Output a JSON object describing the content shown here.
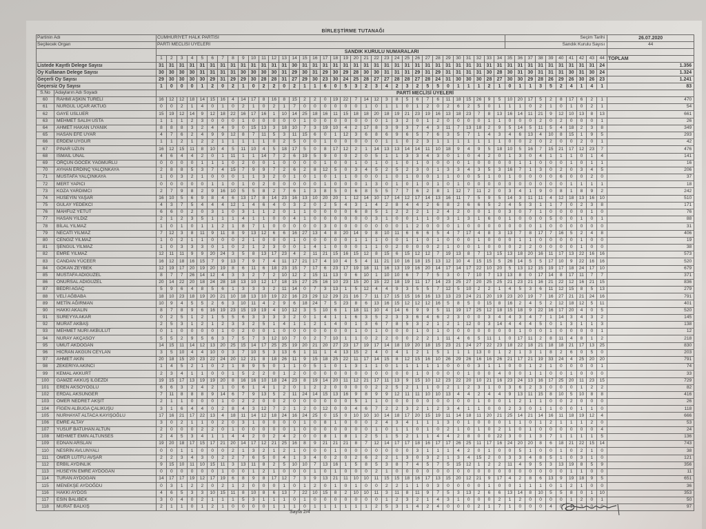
{
  "document": {
    "title": "BİRLEŞTİRME TUTANAĞI",
    "party_label": "Partinin Adı",
    "party_value": "CUMHURİYET HALK PARTİSİ",
    "organ_label": "Seçilecek Organ",
    "organ_value": "PARTİ MECLİSİ ÜYELERİ",
    "election_date_label": "Seçim Tarihi",
    "election_date": "26.07.2020",
    "ballot_count_label": "Sandık Kurulu Sayısı",
    "ballot_count": "44",
    "stations_header": "SANDIK KURULU NUMARALARI",
    "total_header": "TOPLAM",
    "sno_header": "S.No",
    "name_header": "Adayların Adı Soyadı",
    "section_header": "PARTİ MECLİSİ ÜYELERİ",
    "page_label": "Sayfa 2/4",
    "signature": "handwritten signature"
  },
  "summary_rows": [
    {
      "label": "Listede Kayıtlı Delege Sayısı",
      "values": "31 31 31 31 31 31 31 31 31 31 31 31 31 30 31 31 31 31 31 31 31 31 31 31 31 31 31 31 31 31 31 31 31 31 31 31 31 31 31 31 31 31 31 24",
      "total": "1.356"
    },
    {
      "label": "Oy Kullanan Delege Sayısı",
      "values": "30 30 30 30 31 31 31 31 30 30 30 30 31 29 30 31 29 30 29 28 30 30 31 31 31 29 31 29 31 31 31 31 30 28 30 31 30 31 31 31 30 31 30 24",
      "total": "1.324"
    },
    {
      "label": "Geçerli Oy Sayısı",
      "values": "29 30 30 30 30 29 31 29 29 30 28 28 31 27 29 30 23 30 24 25 28 27 27 28 28 27 28 24 31 30 30 30 28 27 30 30 29 28 26 29 26 30 26 23",
      "total": "1.241"
    },
    {
      "label": "Geçersiz Oy Sayısı",
      "values": "1 0 0 0 1 2 0 2 1 0 2 2 0 2 1 1 6 0 5 3 2 3 4 2 3 2 5 5 0 1 1 1 2 1 0 1 1 3 5 2 4 1 4 1",
      "total": "83"
    }
  ],
  "candidates": [
    {
      "sno": "60",
      "name": "RAHMİ AŞKIN TÜRELİ",
      "votes": "16 12 12 18 14 15 16 4 14 17 8 16 8 15 2 2 0 19 22 7 14 12 3 8 5 6 7 6 11 18 15 26 9 5 10 20 17 5 2 8 17 6 2 1",
      "total": "470"
    },
    {
      "sno": "61",
      "name": "NURGÜL UÇAR AKTUĞ",
      "votes": "0 0 2 1 4 0 1 0 2 1 0 2 1 7 0 0 0 0 0 0 1 0 1 1 0 1 2 0 2 6 2 5 0 1 1 1 0 2 1 0 1 0 2 1",
      "total": "54"
    },
    {
      "sno": "62",
      "name": "GAYE USLUER",
      "votes": "15 19 12 14 9 12 18 22 16 17 16 1 10 14 25 18 16 11 15 18 18 20 18 19 21 23 19 16 13 18 23 7 8 13 16 14 11 21 9 12 10 13 8 13",
      "total": "661"
    },
    {
      "sno": "63",
      "name": "MEHMET SALİH USTA",
      "votes": "1 1 1 2 3 0 0 0 1 0 0 0 0 0 1 0 0 0 0 0 0 0 1 3 2 0 1 2 0 0 0 0 1 1 0 0 0 2 0 2 0 0 0 1",
      "total": "26"
    },
    {
      "sno": "64",
      "name": "AHMET HAKAN UYANIK",
      "votes": "8 8 8 3 2 4 4 9 0 15 13 3 18 10 7 3 19 10 4 2 17 8 3 9 3 7 4 3 11 7 13 18 2 9 5 14 5 11 5 4 18 2 3 8",
      "total": "349"
    },
    {
      "sno": "65",
      "name": "HASAN EFE UYAR",
      "votes": "4 7 6 2 4 9 9 12 8 7 11 5 3 11 15 6 0 1 12 3 6 8 6 9 6 5 7 6 3 5 7 1 4 3 4 6 13 4 10 8 15 1 9 5",
      "total": "293"
    },
    {
      "sno": "66",
      "name": "ERDEM UYĞUR",
      "votes": "1 1 2 1 2 2 1 1 1 1 1 0 2 5 0 0 1 0 0 0 0 0 1 1 0 2 3 1 1 1 1 1 1 1 0 0 2 0 2 0 0 2 0 1",
      "total": "42"
    },
    {
      "sno": "67",
      "name": "PINAR UZUN",
      "votes": "16 12 15 11 8 10 4 5 11 10 4 5 18 17 5 0 8 17 12 2 1 14 13 13 14 14 11 10 18 9 4 9 5 18 10 5 16 7 15 21 17 12 23 7",
      "total": "476"
    },
    {
      "sno": "68",
      "name": "İSMAİL ÜNAL",
      "votes": "4 6 4 4 2 0 1 11 1 1 14 7 2 6 19 5 9 0 0 2 0 5 1 1 3 3 4 3 0 1 0 4 2 0 1 3 0 4 1 1 1 0 1 4",
      "total": "141"
    },
    {
      "sno": "69",
      "name": "ORÇUN GÖCEK YAĞMURLU",
      "votes": "0 0 0 0 1 1 1 0 2 0 0 1 0 0 0 0 1 0 0 1 0 1 0 1 0 1 0 0 0 0 1 0 0 0 0 1 1 0 0 0 1 0 1 1",
      "total": "16"
    },
    {
      "sno": "70",
      "name": "AYHAN ERDİNÇ YALÇINKAYA",
      "votes": "2 8 8 5 3 7 4 15 7 9 9 7 2 6 2 8 12 5 0 3 4 5 2 5 2 3 0 1 3 3 4 3 5 3 16 7 1 3 0 2 0 3 4 5",
      "total": "206"
    },
    {
      "sno": "71",
      "name": "MUSTAFA YALÇINKAYA",
      "votes": "1 0 3 2 1 0 0 0 1 1 3 2 0 1 0 1 0 1 1 0 0 0 1 0 1 0 0 1 1 0 0 5 1 0 1 0 0 0 0 6 0 0 2 0",
      "total": "37"
    },
    {
      "sno": "72",
      "name": "MERT YAPICI",
      "votes": "0 0 0 0 0 1 1 0 1 0 2 0 0 0 0 0 1 0 0 0 1 3 0 1 0 1 0 1 0 1 0 0 0 0 0 0 0 0 0 0 1 1 1 1",
      "total": "18"
    },
    {
      "sno": "73",
      "name": "KOZA YARDIMCI",
      "votes": "2 7 9 8 2 9 16 10 5 5 8 2 7 6 1 3 8 5 0 6 8 5 5 7 7 6 2 8 1 12 7 11 2 0 3 4 1 9 0 8 1 8 9 2",
      "total": "242"
    },
    {
      "sno": "74",
      "name": "HÜSEYİN YAŞAR",
      "votes": "16 10 5 6 9 8 4 6 13 17 8 14 23 16 13 10 20 20 1 12 14 10 17 14 12 17 14 13 16 11 7 5 9 5 14 3 11 11 4 12 18 13 16 10",
      "total": "510"
    },
    {
      "sno": "75",
      "name": "GÜLAY YEDEKCİ",
      "votes": "4 3 7 5 4 4 4 12 1 4 6 4 0 3 2 0 2 5 4 3 1 4 2 8 4 4 2 6 8 2 6 6 5 2 4 5 3 1 1 7 0 2 3 8",
      "total": "171"
    },
    {
      "sno": "76",
      "name": "MAHFUZ YETUT",
      "votes": "6 6 0 2 0 3 1 0 3 1 1 2 0 1 1 0 0 0 0 6 8 5 1 2 2 2 1 2 4 2 0 0 1 0 3 0 7 1 0 0 0 0 1 0",
      "total": "76"
    },
    {
      "sno": "77",
      "name": "HASAN YILDIZ",
      "votes": "2 1 2 3 5 1 1 1 4 1 1 0 0 4 1 0 0 0 0 0 0 3 1 0 0 1 1 0 3 1 3 1 6 0 1 0 0 0 5 0 0 1 0 1",
      "total": "88"
    },
    {
      "sno": "78",
      "name": "BİLAL YILMAZ",
      "votes": "1 0 1 0 1 1 2 1 8 7 1 0 0 0 0 0 3 0 0 0 0 0 0 0 1 2 0 0 0 1 0 0 0 0 0 0 0 1 0 0 0 0 0 0",
      "total": "31"
    },
    {
      "sno": "79",
      "name": "NECATİ YILMAZ",
      "votes": "7 12 3 8 11 9 11 8 9 13 12 6 6 16 27 13 4 8 20 14 9 8 10 11 6 6 6 5 4 7 17 4 8 3 13 7 8 17 7 16 5 2 4 8",
      "total": "406"
    },
    {
      "sno": "80",
      "name": "CENGİZ YILMAZ",
      "votes": "1 0 2 1 1 0 0 0 2 1 0 0 0 1 0 0 0 0 0 1 1 1 0 0 1 1 0 1 0 0 0 1 0 0 0 1 1 0 0 0 0 1 0 0",
      "total": "19"
    },
    {
      "sno": "81",
      "name": "ŞENGÜL YILMAZ",
      "votes": "1 0 3 3 3 0 1 0 2 1 2 3 0 0 1 4 1 0 0 0 1 1 0 2 0 0 0 2 1 0 0 1 0 0 0 2 2 0 0 0 0 1 0 0",
      "total": "38"
    },
    {
      "sno": "82",
      "name": "EMRE YILMAZ",
      "votes": "12 11 11 9 9 20 24 3 5 8 13 17 23 4 2 11 21 15 16 15 12 8 15 6 15 12 12 7 19 13 8 7 13 15 13 18 20 16 11 17 13 22 16 16",
      "total": "573"
    },
    {
      "sno": "83",
      "name": "CANDAN YÜCEER",
      "votes": "16 12 18 16 15 7 9 13 7 9 7 4 11 17 21 17 4 10 4 5 4 11 21 10 16 18 15 13 12 10 4 15 15 5 26 14 5 5 17 10 9 22 16 16",
      "total": "520"
    },
    {
      "sno": "84",
      "name": "GÖKAN ZEYBEK",
      "votes": "12 19 17 20 19 20 19 8 6 11 6 18 23 15 7 17 6 23 17 19 18 11 16 13 19 16 20 14 17 14 17 22 10 20 5 13 12 15 19 17 18 24 17 10",
      "total": "679"
    },
    {
      "sno": "85",
      "name": "MUSTAFA ADIGÜZEL",
      "votes": "8 7 7 26 14 12 4 3 3 2 7 2 10 12 2 15 11 13 0 6 10 1 10 10 6 7 7 5 3 0 7 10 7 13 13 8 0 17 14 8 17 11 7 7",
      "total": "371"
    },
    {
      "sno": "86",
      "name": "ONURSAL ADIGÜZEL",
      "votes": "20 14 22 20 18 24 28 18 13 10 12 17 18 15 27 25 16 10 23 15 20 15 22 18 19 11 17 14 23 25 27 20 25 25 21 23 21 16 21 22 12 16 21 15",
      "total": "836"
    },
    {
      "sno": "87",
      "name": "BEDRİ AĞAÇ",
      "votes": "5 9 6 4 8 5 6 1 3 3 3 2 11 14 0 7 3 13 1 5 12 4 4 9 3 5 5 7 12 5 10 2 2 1 4 5 3 6 11 12 15 8 5 13",
      "total": "279"
    },
    {
      "sno": "88",
      "name": "VELİ AĞBABA",
      "votes": "18 10 23 18 19 20 21 10 18 13 10 19 22 16 23 29 12 29 21 16 7 11 17 15 15 16 16 13 13 23 24 21 20 19 23 20 19 7 16 27 21 21 24 16",
      "total": "791"
    },
    {
      "sno": "89",
      "name": "METİN AĞIRMAN",
      "votes": "10 9 4 5 5 2 6 3 10 11 4 2 9 6 18 24 7 5 23 8 6 13 16 15 12 12 12 16 5 8 5 0 15 8 16 2 4 5 2 12 18 12 5 11",
      "total": "401"
    },
    {
      "sno": "90",
      "name": "HAKKI AKALIN",
      "votes": "8 7 8 9 6 16 19 23 15 19 19 4 10 12 3 5 10 6 1 18 11 10 4 14 6 9 9 5 11 19 17 25 12 18 15 18 9 22 16 17 20 4 0 5",
      "total": "520"
    },
    {
      "sno": "91",
      "name": "SÜREYYA AKAR",
      "votes": "0 2 5 1 2 1 5 5 6 3 3 3 3 2 0 1 4 1 1 6 3 5 2 3 3 6 4 6 2 3 0 0 3 4 4 3 4 7 1 14 3 4 3 2",
      "total": "145"
    },
    {
      "sno": "92",
      "name": "MURAT AKBAŞ",
      "votes": "2 5 3 1 2 1 2 3 3 2 5 1 4 1 1 2 1 4 0 1 3 6 7 8 5 3 2 1 2 1 12 0 3 14 4 4 4 5 0 1 3 1 1 3",
      "total": "138"
    },
    {
      "sno": "93",
      "name": "MEHMET NURİ AKBULUT",
      "votes": "0 1 0 0 0 0 1 0 2 0 0 1 0 0 0 0 0 0 0 1 0 1 0 0 0 1 0 1 0 0 0 0 0 0 0 1 0 0 1 0 0 0 0 1",
      "total": "12"
    },
    {
      "sno": "94",
      "name": "NURAY AKÇASOY",
      "votes": "5 5 2 9 5 6 3 7 5 7 3 12 10 7 0 2 7 10 1 1 0 2 2 0 0 2 2 1 11 4 6 5 11 1 0 17 11 2 8 11 4 8 1 2",
      "total": "218"
    },
    {
      "sno": "95",
      "name": "UMUT AKDOĞAN",
      "votes": "14 15 11 14 12 13 20 25 15 14 17 25 25 19 20 21 20 27 23 17 19 17 14 18 19 20 18 15 23 21 24 27 22 23 18 22 18 21 18 18 21 17 13 25",
      "total": "830"
    },
    {
      "sno": "96",
      "name": "HİCRAN AKGÜN CEYLAN",
      "votes": "3 5 10 4 4 10 0 3 7 10 5 3 13 6 1 11 1 4 13 15 2 4 0 4 1 2 1 5 1 1 1 13 0 1 2 1 3 1 8 2 6 0 5 0",
      "total": "203"
    },
    {
      "sno": "97",
      "name": "AHMET AKIN",
      "votes": "20 18 15 20 23 22 24 20 12 21 8 18 26 11 9 15 18 25 22 11 17 14 15 8 12 15 16 10 26 29 26 16 16 26 21 17 21 19 33 24 4 25 20 20",
      "total": "791"
    },
    {
      "sno": "98",
      "name": "ZEKERİYA AKINCI",
      "votes": "1 4 5 2 1 0 2 1 8 9 5 0 1 1 0 5 1 0 1 3 1 1 0 1 1 1 1 1 0 0 0 3 1 1 0 0 1 2 1 0 0 0 0 1",
      "total": "74"
    },
    {
      "sno": "99",
      "name": "KEMAL AKKURT",
      "votes": "2 3 4 1 1 0 0 1 5 2 2 0 1 2 0 0 0 0 0 0 0 0 0 0 0 1 0 0 0 0 1 0 0 4 0 0 1 1 0 0 1 0 0 0",
      "total": "33"
    },
    {
      "sno": "100",
      "name": "GAMZE AKKUŞ İLGEZDİ",
      "votes": "19 15 17 13 19 19 20 8 16 16 10 18 24 23 8 19 14 20 11 12 21 17 11 13 9 15 10 12 23 22 20 10 21 16 23 24 13 16 17 25 20 11 23 15",
      "total": "729"
    },
    {
      "sno": "101",
      "name": "EREN AKSOYOĞLU",
      "votes": "6 6 3 2 4 2 1 0 6 1 4 1 2 0 1 2 2 0 0 0 0 2 2 5 2 1 1 0 2 1 2 3 1 0 3 6 2 3 0 0 0 1 2 2",
      "total": "82"
    },
    {
      "sno": "102",
      "name": "ERDAL AKSÜNGER",
      "votes": "7 11 8 8 8 9 14 6 7 9 13 5 2 11 24 14 15 13 16 9 8 9 9 12 11 11 10 10 13 4 4 2 4 4 9 13 11 15 8 10 5 10 8 8",
      "total": "416"
    },
    {
      "sno": "103",
      "name": "ÖMER NEDRET AKŞİT",
      "votes": "2 1 1 0 0 0 1 0 2 2 0 0 2 0 0 0 0 0 0 5 1 1 0 0 0 0 0 0 0 0 0 1 0 0 1 2 1 1 0 0 2 0 0 0",
      "total": "26"
    },
    {
      "sno": "104",
      "name": "FİGEN ALBUGA ÇALIKUŞU",
      "votes": "3 1 6 4 4 0 2 8 4 3 12 7 2 1 2 0 12 0 0 4 6 7 2 2 3 2 1 2 3 4 1 1 0 0 2 3 0 1 1 0 0 1 1 0",
      "total": "118"
    },
    {
      "sno": "105",
      "name": "NURHAYAT ALTACA KAYIŞOĞLU",
      "votes": "17 16 21 17 22 13 4 18 11 14 12 18 24 16 24 25 0 15 0 10 10 10 14 18 17 20 15 19 11 14 18 11 20 21 25 14 21 14 16 11 18 19 12 4",
      "total": "666"
    },
    {
      "sno": "106",
      "name": "EMRE ALTAY",
      "votes": "3 0 2 1 1 0 2 0 3 1 0 0 0 0 1 0 8 1 0 0 0 2 4 3 4 1 1 1 3 0 1 0 0 0 1 1 0 1 2 1 1 1 2 0",
      "total": "53"
    },
    {
      "sno": "107",
      "name": "YUSUF BATUHAN ALTUN",
      "votes": "2 0 0 0 2 2 0 1 0 0 0 0 0 1 0 0 0 0 0 0 0 1 0 1 1 0 1 0 2 1 0 1 0 2 1 0 1 0 0 0 0 0 0 4",
      "total": "24"
    },
    {
      "sno": "108",
      "name": "MEHMET EMİN ALTUNSES",
      "votes": "2 4 5 3 4 1 1 4 4 2 0 2 4 2 0 0 8 1 8 1 2 5 1 5 2 1 1 4 4 2 8 0 0 22 3 0 1 3 7 1 1 1 1 5",
      "total": "136"
    },
    {
      "sno": "109",
      "name": "EDNAN ARSLAN",
      "votes": "19 20 18 17 15 17 21 20 14 17 12 21 25 16 8 9 21 21 21 8 7 12 14 17 17 18 16 17 17 26 25 11 17 16 24 20 20 8 6 18 21 22 15 14",
      "total": "743"
    },
    {
      "sno": "110",
      "name": "NESRİN AVLUNYALI",
      "votes": "0 0 1 1 0 0 0 2 1 3 2 1 2 1 0 0 0 1 0 0 0 0 0 0 0 3 1 1 1 4 2 0 1 0 0 5 1 0 0 1 0 2 1 0",
      "total": "38"
    },
    {
      "sno": "111",
      "name": "ÖMER LÜTFÜ AVŞAR",
      "votes": "2 2 3 4 3 0 2 2 7 6 5 0 4 1 3 4 0 2 0 2 6 2 2 1 3 0 3 2 1 3 4 15 2 0 3 3 4 8 5 1 0 3 1 0",
      "total": "121"
    },
    {
      "sno": "112",
      "name": "ERBİL AYDINLIK",
      "votes": "9 15 10 11 10 15 11 3 13 11 8 2 5 10 10 7 13 16 1 5 8 5 3 8 7 4 5 7 5 15 12 1 2 2 11 4 9 5 3 13 19 8 5 9",
      "total": "356"
    },
    {
      "sno": "113",
      "name": "HÜSEYİN EMRE AYDOĞAN",
      "votes": "0 0 0 0 0 0 1 0 0 1 2 1 0 0 0 1 0 1 0 0 0 2 1 0 0 0 0 0 0 0 0 0 0 0 0 0 0 0 0 0 1 1 0 0",
      "total": "11"
    },
    {
      "sno": "114",
      "name": "TURAN AYDOĞAN",
      "votes": "14 17 17 19 12 17 19 6 8 9 8 17 12 7 3 9 13 21 11 10 10 11 15 15 18 16 17 13 15 20 12 21 9 17 4 2 8 6 13 9 19 18 9 5",
      "total": "651"
    },
    {
      "sno": "115",
      "name": "MENEKŞE AYDOĞDU",
      "votes": "0 3 1 2 2 0 2 1 2 0 0 0 1 0 1 2 0 1 0 1 0 0 2 2 1 1 0 3 0 0 0 0 1 0 0 1 1 1 0 1 2 1 0 0",
      "total": "36"
    },
    {
      "sno": "116",
      "name": "HAKKI AYDOS",
      "votes": "4 6 5 3 3 10 15 11 8 10 8 6 13 7 22 10 15 8 2 10 10 11 3 11 8 11 9 7 5 3 13 2 6 6 13 14 8 10 5 5 8 0 1 10",
      "total": "353"
    },
    {
      "sno": "117",
      "name": "ESİN BALIBEK",
      "votes": "3 0 4 0 2 1 1 1 5 3 1 1 1 0 1 0 0 0 0 0 0 0 1 2 3 2 1 4 3 1 0 0 0 2 1 2 0 0 0 0 1 2 0 1",
      "total": "50"
    },
    {
      "sno": "118",
      "name": "MURAT BALKIŞ",
      "votes": "2 1 1 0 1 2 1 0 0 0 0 1 1 1 0 1 1 1 1 1 1 2 5 3 1 4 2 4 0 0 0 2 1 7 1 0 0 0 4 0 1 3 0 0",
      "total": "97"
    }
  ]
}
